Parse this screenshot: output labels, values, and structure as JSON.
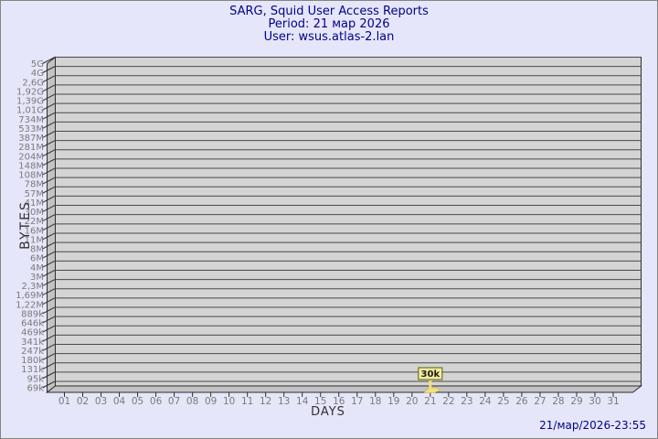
{
  "window": {
    "bg_color": "#e6e6fa",
    "border_color": "#848484"
  },
  "header": {
    "title": "SARG, Squid User Access Reports",
    "period": "Period: 21 мар 2026",
    "user": "User: wsus.atlas-2.lan",
    "text_color": "#00008b"
  },
  "footer": {
    "timestamp": "21/мар/2026-23:55",
    "text_color": "#00008b"
  },
  "chart_data": {
    "type": "bar",
    "title": "SARG, Squid User Access Reports",
    "subtitle1": "Period: 21 мар 2026",
    "subtitle2": "User: wsus.atlas-2.lan",
    "xlabel": "DAYS",
    "ylabel": "BYTES",
    "scale": "logarithmic-byte-scale",
    "grid": true,
    "legend": "none",
    "x_ticks": [
      "01",
      "02",
      "03",
      "04",
      "05",
      "06",
      "07",
      "08",
      "09",
      "10",
      "11",
      "12",
      "13",
      "14",
      "15",
      "16",
      "17",
      "18",
      "19",
      "20",
      "21",
      "22",
      "23",
      "24",
      "25",
      "26",
      "27",
      "28",
      "29",
      "30",
      "31"
    ],
    "y_ticks_top_to_bottom": [
      "5G",
      "4G",
      "2,6G",
      "1,92G",
      "1,39G",
      "1,01G",
      "734M",
      "533M",
      "387M",
      "281M",
      "204M",
      "148M",
      "108M",
      "78M",
      "57M",
      "41M",
      "30M",
      "22M",
      "16M",
      "11M",
      "8M",
      "6M",
      "4M",
      "3M",
      "2,3M",
      "1,69M",
      "1,22M",
      "889k",
      "646k",
      "469k",
      "341k",
      "247k",
      "180k",
      "131k",
      "95k",
      "69k"
    ],
    "ylim_top": "5G",
    "ylim_bottom": "69k",
    "bars": [
      {
        "day": "21",
        "value_label": "30k",
        "value_bytes": 30000
      }
    ],
    "colors": {
      "plot_bg": "#d4d4d4",
      "wall": "#c3c3c3",
      "gridline": "#4a4a4a",
      "frame": "#2e2e2e",
      "tick_label": "#7a7a7a",
      "axis_title": "#303030",
      "bar_fill": "#f0e17d",
      "bar_label_bg": "#f0e9a8",
      "bar_label_border": "#5f5f00",
      "bar_label_text": "#1f1f00"
    }
  }
}
